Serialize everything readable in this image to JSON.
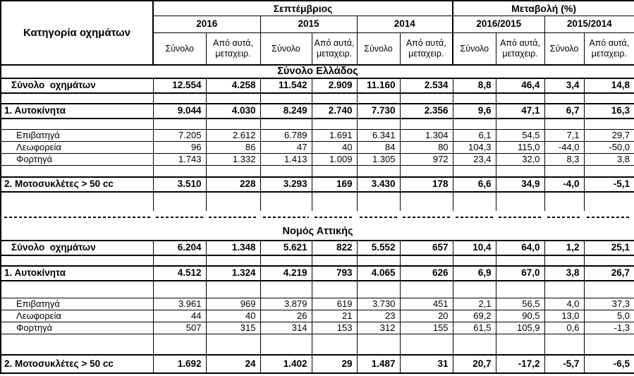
{
  "header": {
    "category_col": "Κατηγορία οχημάτων",
    "september_group": "Σεπτέμβριος",
    "change_group": "Μεταβολή (%)",
    "year_cols": [
      "2016",
      "2015",
      "2014"
    ],
    "change_cols": [
      "2016/2015",
      "2015/2014"
    ],
    "sub_total": "Σύνολο",
    "sub_used": "Από αυτά, μεταχειρ."
  },
  "table": {
    "body_rows": [
      {
        "type": "section_title",
        "text": "Σύνολο Ελλάδος"
      },
      {
        "type": "data",
        "variant": "total",
        "label": "Σύνολο  οχημάτων",
        "values": [
          "12.554",
          "4.258",
          "11.542",
          "2.909",
          "11.160",
          "2.534",
          "8,8",
          "46,4",
          "3,4",
          "14,8"
        ]
      },
      {
        "type": "spacer",
        "variant": "s15"
      },
      {
        "type": "data",
        "variant": "bold",
        "label": "1. Αυτοκίνητα",
        "values": [
          "9.044",
          "4.030",
          "8.249",
          "2.740",
          "7.730",
          "2.356",
          "9,6",
          "47,1",
          "6,7",
          "16,3"
        ]
      },
      {
        "type": "spacer",
        "variant": "s16"
      },
      {
        "type": "data",
        "variant": "sub",
        "label": "Επιβατηγά",
        "values": [
          "7.205",
          "2.612",
          "6.789",
          "1.691",
          "6.341",
          "1.304",
          "6,1",
          "54,5",
          "7,1",
          "29,7"
        ]
      },
      {
        "type": "data",
        "variant": "sub",
        "label": "Λεωφορεία",
        "values": [
          "96",
          "86",
          "47",
          "40",
          "84",
          "80",
          "104,3",
          "115,0",
          "-44,0",
          "-50,0"
        ]
      },
      {
        "type": "data",
        "variant": "sub",
        "label": "Φορτηγά",
        "values": [
          "1.743",
          "1.332",
          "1.413",
          "1.009",
          "1.305",
          "972",
          "23,4",
          "32,0",
          "8,3",
          "3,8"
        ]
      },
      {
        "type": "spacer",
        "variant": "s16"
      },
      {
        "type": "data",
        "variant": "bold",
        "label": "2. Μοτοσυκλέτες > 50 cc",
        "values": [
          "3.510",
          "228",
          "3.293",
          "169",
          "3.430",
          "178",
          "6,6",
          "34,9",
          "-4,0",
          "-5,1"
        ]
      },
      {
        "type": "spacer",
        "variant": "s27"
      },
      {
        "type": "dashed"
      },
      {
        "type": "section_title",
        "text": "Νομός Αττικής",
        "tall": true
      },
      {
        "type": "data",
        "variant": "total",
        "label": "Σύνολο  οχημάτων",
        "values": [
          "6.204",
          "1.348",
          "5.621",
          "822",
          "5.552",
          "657",
          "10,4",
          "64,0",
          "1,2",
          "25,1"
        ]
      },
      {
        "type": "spacer",
        "variant": "s15"
      },
      {
        "type": "data",
        "variant": "bold",
        "label": "1. Αυτοκίνητα",
        "values": [
          "4.512",
          "1.324",
          "4.219",
          "793",
          "4.065",
          "626",
          "6,9",
          "67,0",
          "3,8",
          "26,7"
        ]
      },
      {
        "type": "spacer",
        "variant": "s25"
      },
      {
        "type": "data",
        "variant": "sub",
        "label": "Επιβατηγά",
        "values": [
          "3.961",
          "969",
          "3.879",
          "619",
          "3.730",
          "451",
          "2,1",
          "56,5",
          "4,0",
          "37,3"
        ]
      },
      {
        "type": "data",
        "variant": "sub",
        "label": "Λεωφορεία",
        "values": [
          "44",
          "40",
          "26",
          "21",
          "23",
          "20",
          "69,2",
          "90,5",
          "13,0",
          "5,0"
        ]
      },
      {
        "type": "data",
        "variant": "sub",
        "label": "Φορτηγά",
        "values": [
          "507",
          "315",
          "314",
          "153",
          "312",
          "155",
          "61,5",
          "105,9",
          "0,6",
          "-1,3"
        ]
      },
      {
        "type": "spacer",
        "variant": "s29"
      },
      {
        "type": "data",
        "variant": "bold",
        "label": "2. Μοτοσυκλέτες > 50 cc",
        "values": [
          "1.692",
          "24",
          "1.402",
          "29",
          "1.487",
          "31",
          "20,7",
          "-17,2",
          "-5,7",
          "-6,5"
        ]
      }
    ]
  }
}
